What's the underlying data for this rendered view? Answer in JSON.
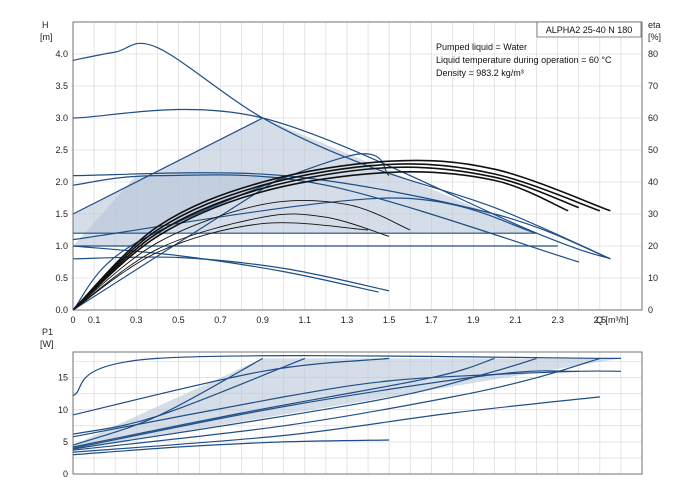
{
  "chart_data": [
    {
      "type": "line",
      "title": "ALPHA2 25-40 N 180",
      "annotations": [
        "Pumped liquid = Water",
        "Liquid temperature during operation = 60 °C",
        "Density = 983.2 kg/m³"
      ],
      "ylabel": [
        "H",
        "[m]"
      ],
      "y2label": [
        "eta",
        "[%]"
      ],
      "xlabel": "Q [m³/h]",
      "xlim": [
        0,
        2.7
      ],
      "ylim": [
        0,
        4.5
      ],
      "y2lim": [
        0,
        90
      ],
      "xticks": [
        "0",
        "0.1",
        "0.3",
        "0.5",
        "0.7",
        "0.9",
        "1.1",
        "1.3",
        "1.5",
        "1.7",
        "1.9",
        "2.1",
        "2.3",
        "2.5"
      ],
      "xtick_values": [
        0,
        0.1,
        0.3,
        0.5,
        0.7,
        0.9,
        1.1,
        1.3,
        1.5,
        1.7,
        1.9,
        2.1,
        2.3,
        2.5
      ],
      "yticks": [
        "0.0",
        "0.5",
        "1.0",
        "1.5",
        "2.0",
        "2.5",
        "3.0",
        "3.5",
        "4.0"
      ],
      "ytick_values": [
        0,
        0.5,
        1.0,
        1.5,
        2.0,
        2.5,
        3.0,
        3.5,
        4.0
      ],
      "y2ticks": [
        "0",
        "10",
        "20",
        "30",
        "40",
        "50",
        "60",
        "70",
        "80"
      ],
      "y2tick_values": [
        0,
        10,
        20,
        30,
        40,
        50,
        60,
        70,
        80
      ],
      "shaded_regions": [
        {
          "points": [
            [
              0,
              1.5
            ],
            [
              0.9,
              3.0
            ],
            [
              2.2,
              1.2
            ],
            [
              0,
              1.2
            ]
          ]
        },
        {
          "points": [
            [
              0,
              1.0
            ],
            [
              0.3,
              1.0
            ],
            [
              1.0,
              2.1
            ],
            [
              0.3,
              2.1
            ]
          ]
        }
      ],
      "series": [
        {
          "points": [
            [
              0,
              3.9
            ],
            [
              0.2,
              4.03
            ],
            [
              0.4,
              4.1
            ],
            [
              0.9,
              3.0
            ],
            [
              1.4,
              2.25
            ],
            [
              2.0,
              1.6
            ],
            [
              2.55,
              0.8
            ]
          ]
        },
        {
          "points": [
            [
              0,
              3.0
            ],
            [
              0.9,
              3.0
            ],
            [
              2.2,
              1.2
            ],
            [
              2.55,
              0.8
            ]
          ]
        },
        {
          "points": [
            [
              0,
              1.5
            ],
            [
              0.9,
              3.0
            ]
          ]
        },
        {
          "points": [
            [
              0,
              2.1
            ],
            [
              1.0,
              2.1
            ],
            [
              2.0,
              1.5
            ],
            [
              2.55,
              0.8
            ]
          ]
        },
        {
          "points": [
            [
              0,
              1.95
            ],
            [
              0.4,
              2.1
            ],
            [
              1.2,
              1.95
            ],
            [
              2.4,
              0.75
            ]
          ]
        },
        {
          "points": [
            [
              0,
              1.2
            ],
            [
              2.2,
              1.2
            ]
          ]
        },
        {
          "points": [
            [
              0,
              1.0
            ],
            [
              2.3,
              1.0
            ]
          ]
        },
        {
          "points": [
            [
              0,
              1.1
            ],
            [
              1.5,
              1.75
            ],
            [
              2.2,
              1.2
            ]
          ]
        },
        {
          "points": [
            [
              0,
              0.8
            ],
            [
              0.5,
              0.82
            ],
            [
              1.0,
              0.65
            ],
            [
              1.5,
              0.3
            ]
          ]
        },
        {
          "points": [
            [
              0,
              1.0
            ],
            [
              0.5,
              0.85
            ],
            [
              1.0,
              0.6
            ],
            [
              1.45,
              0.28
            ]
          ]
        },
        {
          "points": [
            [
              0,
              0.0
            ],
            [
              1.0,
              2.1
            ]
          ]
        },
        {
          "points": [
            [
              0,
              0.0
            ],
            [
              0.3,
              1.05
            ],
            [
              1.3,
              2.4
            ],
            [
              1.5,
              2.1
            ]
          ]
        }
      ],
      "eta_series": [
        {
          "points": [
            [
              0,
              0
            ],
            [
              0.4,
              26
            ],
            [
              0.9,
              40
            ],
            [
              1.5,
              46.5
            ],
            [
              2.0,
              44
            ],
            [
              2.55,
              31
            ]
          ]
        },
        {
          "points": [
            [
              0,
              0
            ],
            [
              0.4,
              25
            ],
            [
              0.9,
              39
            ],
            [
              1.5,
              45.5
            ],
            [
              2.0,
              42.5
            ],
            [
              2.5,
              31
            ]
          ]
        },
        {
          "points": [
            [
              0,
              0
            ],
            [
              0.4,
              24
            ],
            [
              0.9,
              38
            ],
            [
              1.5,
              44.5
            ],
            [
              2.0,
              41.5
            ],
            [
              2.4,
              32
            ]
          ]
        },
        {
          "points": [
            [
              0,
              0
            ],
            [
              0.4,
              23
            ],
            [
              0.9,
              37
            ],
            [
              1.5,
              43
            ],
            [
              2.0,
              40.5
            ],
            [
              2.35,
              31
            ]
          ]
        },
        {
          "points": [
            [
              0,
              0
            ],
            [
              0.4,
              21
            ],
            [
              0.9,
              33
            ],
            [
              1.3,
              33
            ],
            [
              1.6,
              25
            ]
          ]
        },
        {
          "points": [
            [
              0,
              0
            ],
            [
              0.4,
              19
            ],
            [
              0.9,
              29
            ],
            [
              1.2,
              29
            ],
            [
              1.5,
              23
            ]
          ]
        },
        {
          "points": [
            [
              0,
              0
            ],
            [
              0.4,
              18
            ],
            [
              0.9,
              27
            ],
            [
              1.4,
              25
            ]
          ]
        }
      ]
    },
    {
      "type": "line",
      "ylabel": [
        "P1",
        "[W]"
      ],
      "xlim": [
        0,
        2.7
      ],
      "ylim": [
        0,
        19
      ],
      "yticks": [
        "0",
        "5",
        "10",
        "15"
      ],
      "ytick_values": [
        0,
        5,
        10,
        15
      ],
      "shaded_regions": [
        {
          "points": [
            [
              0,
              4.5
            ],
            [
              0.9,
              18
            ],
            [
              2.6,
              18
            ],
            [
              0,
              3.8
            ]
          ]
        }
      ],
      "series": [
        {
          "points": [
            [
              0,
              12.2
            ],
            [
              0.4,
              18
            ],
            [
              2.6,
              18
            ]
          ]
        },
        {
          "points": [
            [
              0,
              9.2
            ],
            [
              0.9,
              16
            ],
            [
              1.5,
              18
            ]
          ]
        },
        {
          "points": [
            [
              0,
              6.2
            ],
            [
              0.4,
              9
            ],
            [
              1.1,
              18
            ]
          ]
        },
        {
          "points": [
            [
              0,
              5.8
            ],
            [
              1.0,
              12
            ],
            [
              1.5,
              14.5
            ],
            [
              2.0,
              15.5
            ],
            [
              2.4,
              16
            ]
          ]
        },
        {
          "points": [
            [
              0,
              4.5
            ],
            [
              0.4,
              9
            ],
            [
              0.9,
              18
            ]
          ]
        },
        {
          "points": [
            [
              0,
              4.2
            ],
            [
              0.8,
              9.5
            ],
            [
              1.7,
              15
            ],
            [
              2.0,
              18
            ]
          ]
        },
        {
          "points": [
            [
              0,
              4.0
            ],
            [
              1.0,
              10.5
            ],
            [
              2.0,
              15.5
            ],
            [
              2.4,
              16
            ],
            [
              2.6,
              16
            ]
          ]
        },
        {
          "points": [
            [
              0,
              3.9
            ],
            [
              1.0,
              9
            ],
            [
              1.6,
              12.5
            ],
            [
              2.0,
              16
            ],
            [
              2.2,
              18
            ]
          ]
        },
        {
          "points": [
            [
              0,
              3.7
            ],
            [
              1.0,
              7.5
            ],
            [
              1.8,
              12
            ],
            [
              2.2,
              15
            ],
            [
              2.5,
              18
            ]
          ]
        },
        {
          "points": [
            [
              0,
              3.4
            ],
            [
              1.0,
              6
            ],
            [
              1.8,
              9.5
            ],
            [
              2.5,
              12
            ]
          ]
        },
        {
          "points": [
            [
              0,
              3.0
            ],
            [
              0.5,
              4.2
            ],
            [
              1.0,
              5
            ],
            [
              1.5,
              5.3
            ]
          ]
        }
      ]
    }
  ]
}
